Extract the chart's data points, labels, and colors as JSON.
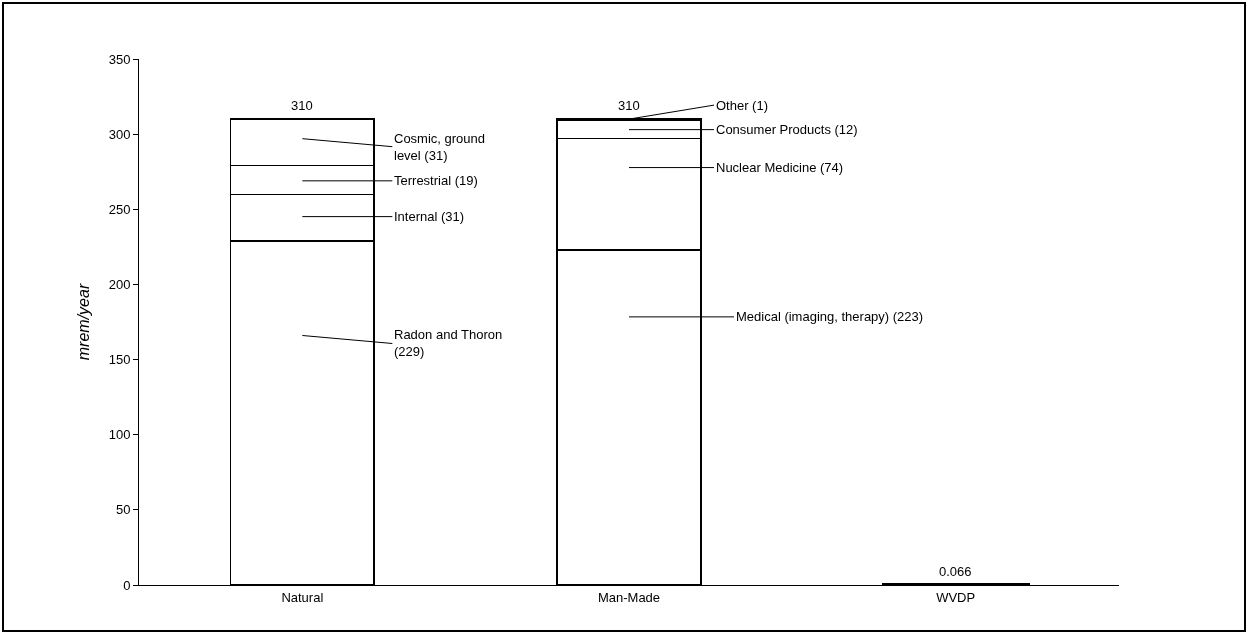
{
  "chart_data": {
    "type": "bar",
    "stacked": true,
    "categories": [
      "Natural",
      "Man-Made",
      "WVDP"
    ],
    "ylabel": "mrem/year",
    "ylim": [
      0,
      350
    ],
    "yticks": [
      0,
      50,
      100,
      150,
      200,
      250,
      300,
      350
    ],
    "grid": false,
    "series": [
      {
        "colors": [
          "#ffffff",
          "#ffffff",
          "#000000"
        ],
        "values": [
          229,
          223,
          0.066
        ]
      },
      {
        "color": "#ffffff",
        "values": [
          31,
          74,
          null
        ]
      },
      {
        "color": "#ffffff",
        "values": [
          19,
          12,
          null
        ]
      },
      {
        "color": "#ffffff",
        "values": [
          31,
          1,
          null
        ]
      }
    ],
    "totals": [
      "310",
      "310",
      "0.066"
    ],
    "annotations": [
      "Cosmic, ground\nlevel (31)",
      "Terrestrial (19)",
      "Internal (31)",
      "Radon and Thoron\n(229)",
      {
        "text": "Other (1)",
        "x": "Man-Made",
        "y": 310
      },
      "Consumer Products (12)",
      "Nuclear Medicine (74)",
      "Medical (imaging, therapy) (223)"
    ]
  }
}
